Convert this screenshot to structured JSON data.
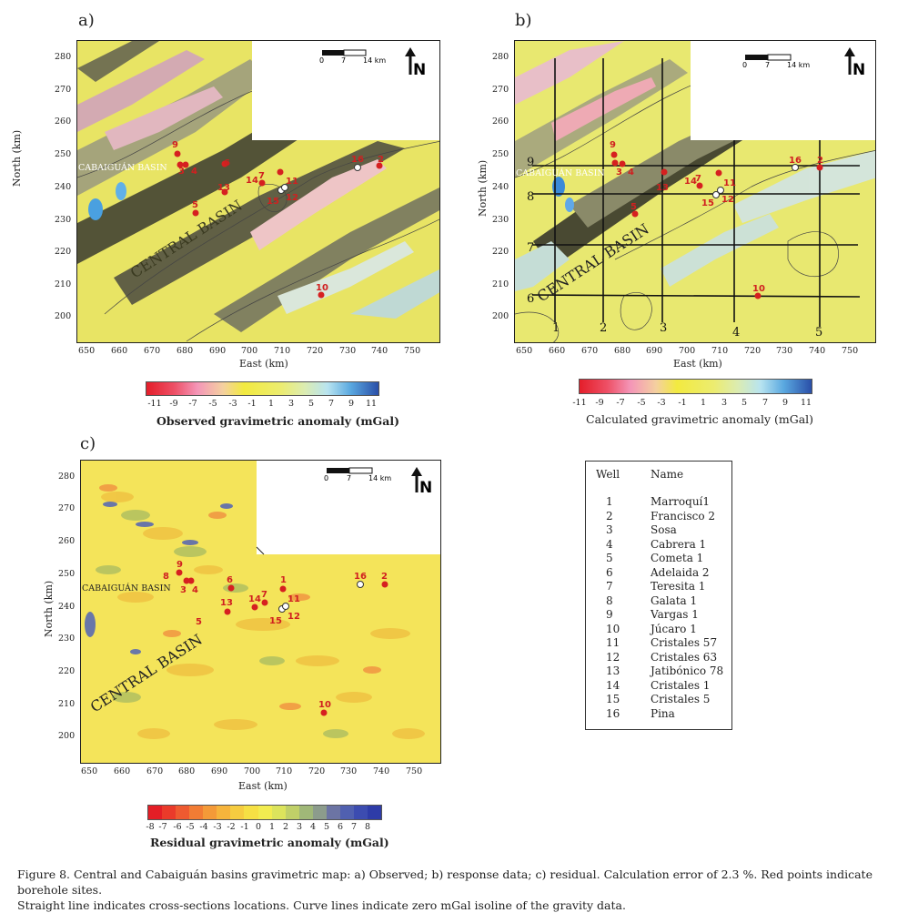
{
  "panels": {
    "a": {
      "label": "a)",
      "colorbar_title": "Observed gravimetric anomaly (mGal)",
      "colorbar_ticks": [
        "-11",
        "-9",
        "-7",
        "-5",
        "-3",
        "-1",
        "1",
        "3",
        "5",
        "7",
        "9",
        "11"
      ]
    },
    "b": {
      "label": "b)",
      "colorbar_title": "Calculated gravimetric anomaly (mGal)",
      "colorbar_ticks": [
        "-11",
        "-9",
        "-7",
        "-5",
        "-3",
        "-1",
        "1",
        "3",
        "5",
        "7",
        "9",
        "11"
      ],
      "section_labels": [
        "1",
        "2",
        "3",
        "4",
        "5",
        "6",
        "7",
        "8",
        "9"
      ]
    },
    "c": {
      "label": "c)",
      "colorbar_title": "Residual gravimetric anomaly (mGal)",
      "colorbar_ticks": [
        "-8",
        "-7",
        "-6",
        "-5",
        "-4",
        "-3",
        "-2",
        "-1",
        "0",
        "1",
        "2",
        "3",
        "4",
        "5",
        "6",
        "7",
        "8"
      ]
    }
  },
  "axes": {
    "xlabel": "East (km)",
    "ylabel": "North (km)",
    "x_ticks": [
      "650",
      "660",
      "670",
      "680",
      "690",
      "700",
      "710",
      "720",
      "730",
      "740",
      "750"
    ],
    "y_ticks": [
      "280",
      "270",
      "260",
      "250",
      "240",
      "230",
      "220",
      "210",
      "200"
    ],
    "scale_ticks": [
      "0",
      "7",
      "14 km"
    ],
    "north_label": "N"
  },
  "basins": {
    "central": "CENTRAL BASIN",
    "cabaiguan": "CABAIGUÁN BASIN"
  },
  "colors": {
    "red": "#e02a2a",
    "pink": "#f08aa8",
    "yellow": "#eaea50",
    "light_blue": "#bfe3f0",
    "blue": "#2d54b0",
    "well": "#d62020"
  },
  "wells": {
    "header_well": "Well",
    "header_name": "Name",
    "rows": [
      {
        "num": "1",
        "name": "Marroquí1"
      },
      {
        "num": "2",
        "name": "Francisco 2"
      },
      {
        "num": "3",
        "name": "Sosa"
      },
      {
        "num": "4",
        "name": "Cabrera 1"
      },
      {
        "num": "5",
        "name": "Cometa 1"
      },
      {
        "num": "6",
        "name": "Adelaida 2"
      },
      {
        "num": "7",
        "name": "Teresita 1"
      },
      {
        "num": "8",
        "name": "Galata 1"
      },
      {
        "num": "9",
        "name": "Vargas 1"
      },
      {
        "num": "10",
        "name": "Júcaro 1"
      },
      {
        "num": "11",
        "name": "Cristales 57"
      },
      {
        "num": "12",
        "name": "Cristales 63"
      },
      {
        "num": "13",
        "name": "Jatibónico 78"
      },
      {
        "num": "14",
        "name": "Cristales 1"
      },
      {
        "num": "15",
        "name": "Cristales 5"
      },
      {
        "num": "16",
        "name": "Pina"
      }
    ]
  },
  "caption": {
    "line1": "Figure 8. Central and Cabaiguán basins gravimetric map: a) Observed; b) response data; c) residual. Calculation error of 2.3 %. Red points indicate borehole sites.",
    "line2": "Straight line indicates cross-sections locations. Curve lines indicate zero mGal isoline of the gravity data."
  }
}
